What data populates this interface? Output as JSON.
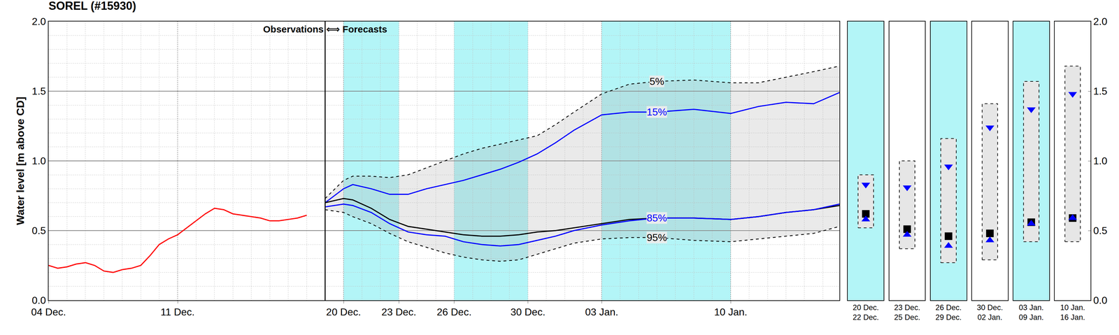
{
  "chart_data": {
    "type": "line",
    "title": "SOREL (#15930)",
    "y_label": "Water level [m above CD]",
    "divider": {
      "x": 15,
      "label": "Observations ⟺ Forecasts"
    },
    "xlim": [
      0,
      42.9
    ],
    "xticks": [
      {
        "value": 0,
        "label": "04 Dec."
      },
      {
        "value": 7,
        "label": "11 Dec."
      },
      {
        "value": 16,
        "label": "20 Dec."
      },
      {
        "value": 19,
        "label": "23 Dec."
      },
      {
        "value": 22,
        "label": "26 Dec."
      },
      {
        "value": 26,
        "label": "30 Dec."
      },
      {
        "value": 30,
        "label": "03 Jan."
      },
      {
        "value": 37,
        "label": "10 Jan."
      }
    ],
    "ylim": [
      0,
      2
    ],
    "yticks": [
      {
        "value": 0,
        "label": "0.0"
      },
      {
        "value": 0.5,
        "label": "0.5"
      },
      {
        "value": 1,
        "label": "1.0"
      },
      {
        "value": 1.5,
        "label": "1.5"
      },
      {
        "value": 2,
        "label": "2.0"
      }
    ],
    "y2lim": [
      0,
      2
    ],
    "y2ticks": [
      {
        "value": 0,
        "label": "0.0"
      },
      {
        "value": 0.5,
        "label": "0.5"
      },
      {
        "value": 1,
        "label": "1.0"
      },
      {
        "value": 1.5,
        "label": "1.5"
      },
      {
        "value": 2,
        "label": "2.0"
      }
    ],
    "grid": true,
    "shaded_periods": [
      {
        "start": 16,
        "end": 19
      },
      {
        "start": 22,
        "end": 26
      },
      {
        "start": 30,
        "end": 37
      }
    ],
    "series": [
      {
        "color": "#ff0000",
        "line_style": "solid",
        "x": [
          0,
          0.5,
          1,
          1.5,
          2,
          2.5,
          3,
          3.5,
          4,
          4.5,
          5,
          5.5,
          6,
          6.5,
          7,
          7.5,
          8,
          8.5,
          9,
          9.5,
          10,
          10.5,
          11,
          11.5,
          12,
          12.5,
          13,
          13.5,
          14
        ],
        "values": [
          0.25,
          0.23,
          0.24,
          0.26,
          0.27,
          0.25,
          0.21,
          0.2,
          0.22,
          0.23,
          0.25,
          0.32,
          0.4,
          0.44,
          0.47,
          0.52,
          0.57,
          0.62,
          0.66,
          0.65,
          0.62,
          0.61,
          0.6,
          0.59,
          0.57,
          0.57,
          0.58,
          0.59,
          0.61
        ]
      },
      {
        "name": "95%",
        "color": "#000000",
        "line_style": "dashed",
        "x": [
          15,
          16,
          16.5,
          17.5,
          18.5,
          19.5,
          20.5,
          21.5,
          22.5,
          23.5,
          24.5,
          25.5,
          26.5,
          27.5,
          28.5,
          30,
          31.5,
          33,
          35,
          37,
          38.5,
          40,
          41.5,
          42.9
        ],
        "values": [
          0.65,
          0.63,
          0.6,
          0.55,
          0.48,
          0.42,
          0.38,
          0.34,
          0.31,
          0.29,
          0.28,
          0.29,
          0.33,
          0.37,
          0.41,
          0.44,
          0.45,
          0.45,
          0.43,
          0.42,
          0.44,
          0.46,
          0.48,
          0.53
        ]
      },
      {
        "name": "5%",
        "color": "#000000",
        "line_style": "dashed",
        "type": "band",
        "x": [
          15,
          16,
          16.5,
          17.5,
          18.5,
          19.5,
          20.5,
          21.5,
          22.5,
          23.5,
          24.5,
          25.5,
          26.5,
          27.5,
          28.5,
          30,
          31.5,
          33,
          35,
          37,
          38.5,
          40,
          41.5,
          42.9
        ],
        "values": [
          0.73,
          0.86,
          0.89,
          0.89,
          0.88,
          0.9,
          0.95,
          1.0,
          1.05,
          1.09,
          1.12,
          1.15,
          1.18,
          1.26,
          1.35,
          1.48,
          1.55,
          1.57,
          1.58,
          1.56,
          1.56,
          1.6,
          1.64,
          1.68
        ]
      },
      {
        "name": "15%",
        "color": "#0000ff",
        "line_style": "solid",
        "x": [
          15,
          16,
          16.5,
          17.5,
          18.5,
          19.5,
          20.5,
          21.5,
          22.5,
          23.5,
          24.5,
          25.5,
          26.5,
          27.5,
          28.5,
          30,
          31.5,
          33,
          35,
          37,
          38.5,
          40,
          41.5,
          42.9
        ],
        "values": [
          0.7,
          0.8,
          0.83,
          0.8,
          0.76,
          0.76,
          0.8,
          0.83,
          0.86,
          0.9,
          0.94,
          0.99,
          1.05,
          1.13,
          1.22,
          1.33,
          1.35,
          1.35,
          1.37,
          1.34,
          1.39,
          1.42,
          1.41,
          1.49
        ]
      },
      {
        "color": "#000000",
        "line_style": "solid",
        "x": [
          15,
          16,
          16.5,
          17.5,
          18.5,
          19.5,
          20.5,
          21.5,
          22.5,
          23.5,
          24.5,
          25.5,
          26.5,
          27.5,
          28.5,
          30,
          31.5,
          33,
          35,
          37,
          38.5,
          40,
          41.5,
          42.9
        ],
        "values": [
          0.7,
          0.73,
          0.72,
          0.66,
          0.58,
          0.53,
          0.51,
          0.49,
          0.47,
          0.46,
          0.46,
          0.47,
          0.49,
          0.5,
          0.52,
          0.55,
          0.58,
          0.59,
          0.59,
          0.58,
          0.6,
          0.63,
          0.65,
          0.68
        ]
      },
      {
        "name": "85%",
        "color": "#0000ff",
        "line_style": "solid",
        "x": [
          15,
          16,
          16.5,
          17.5,
          18.5,
          19.5,
          20.5,
          21.5,
          22.5,
          23.5,
          24.5,
          25.5,
          26.5,
          27.5,
          28.5,
          30,
          31.5,
          33,
          35,
          37,
          38.5,
          40,
          41.5,
          42.9
        ],
        "values": [
          0.67,
          0.69,
          0.68,
          0.63,
          0.55,
          0.49,
          0.47,
          0.46,
          0.42,
          0.4,
          0.39,
          0.4,
          0.43,
          0.46,
          0.5,
          0.54,
          0.57,
          0.59,
          0.59,
          0.58,
          0.6,
          0.63,
          0.65,
          0.69
        ]
      }
    ],
    "period_summaries": {
      "categories": [
        [
          "20 Dec.",
          "22 Dec."
        ],
        [
          "23 Dec.",
          "25 Dec."
        ],
        [
          "26 Dec.",
          "29 Dec."
        ],
        [
          "30 Dec.",
          "02 Jan."
        ],
        [
          "03 Jan.",
          "09 Jan."
        ],
        [
          "10 Jan.",
          "16 Jan."
        ]
      ],
      "shaded": [
        true,
        false,
        true,
        false,
        true,
        false
      ],
      "range_low": [
        0.52,
        0.37,
        0.27,
        0.29,
        0.42,
        0.42
      ],
      "range_high": [
        0.9,
        1.0,
        1.16,
        1.41,
        1.57,
        1.68
      ],
      "markers": [
        {
          "color": "#0000ff",
          "marker": "triangle-down",
          "values": [
            0.83,
            0.81,
            0.96,
            1.24,
            1.37,
            1.48
          ]
        },
        {
          "color": "#000000",
          "marker": "square",
          "values": [
            0.62,
            0.51,
            0.46,
            0.48,
            0.56,
            0.59
          ]
        },
        {
          "color": "#0000ff",
          "marker": "triangle-up",
          "values": [
            0.58,
            0.47,
            0.39,
            0.43,
            0.55,
            0.59
          ]
        }
      ]
    }
  }
}
